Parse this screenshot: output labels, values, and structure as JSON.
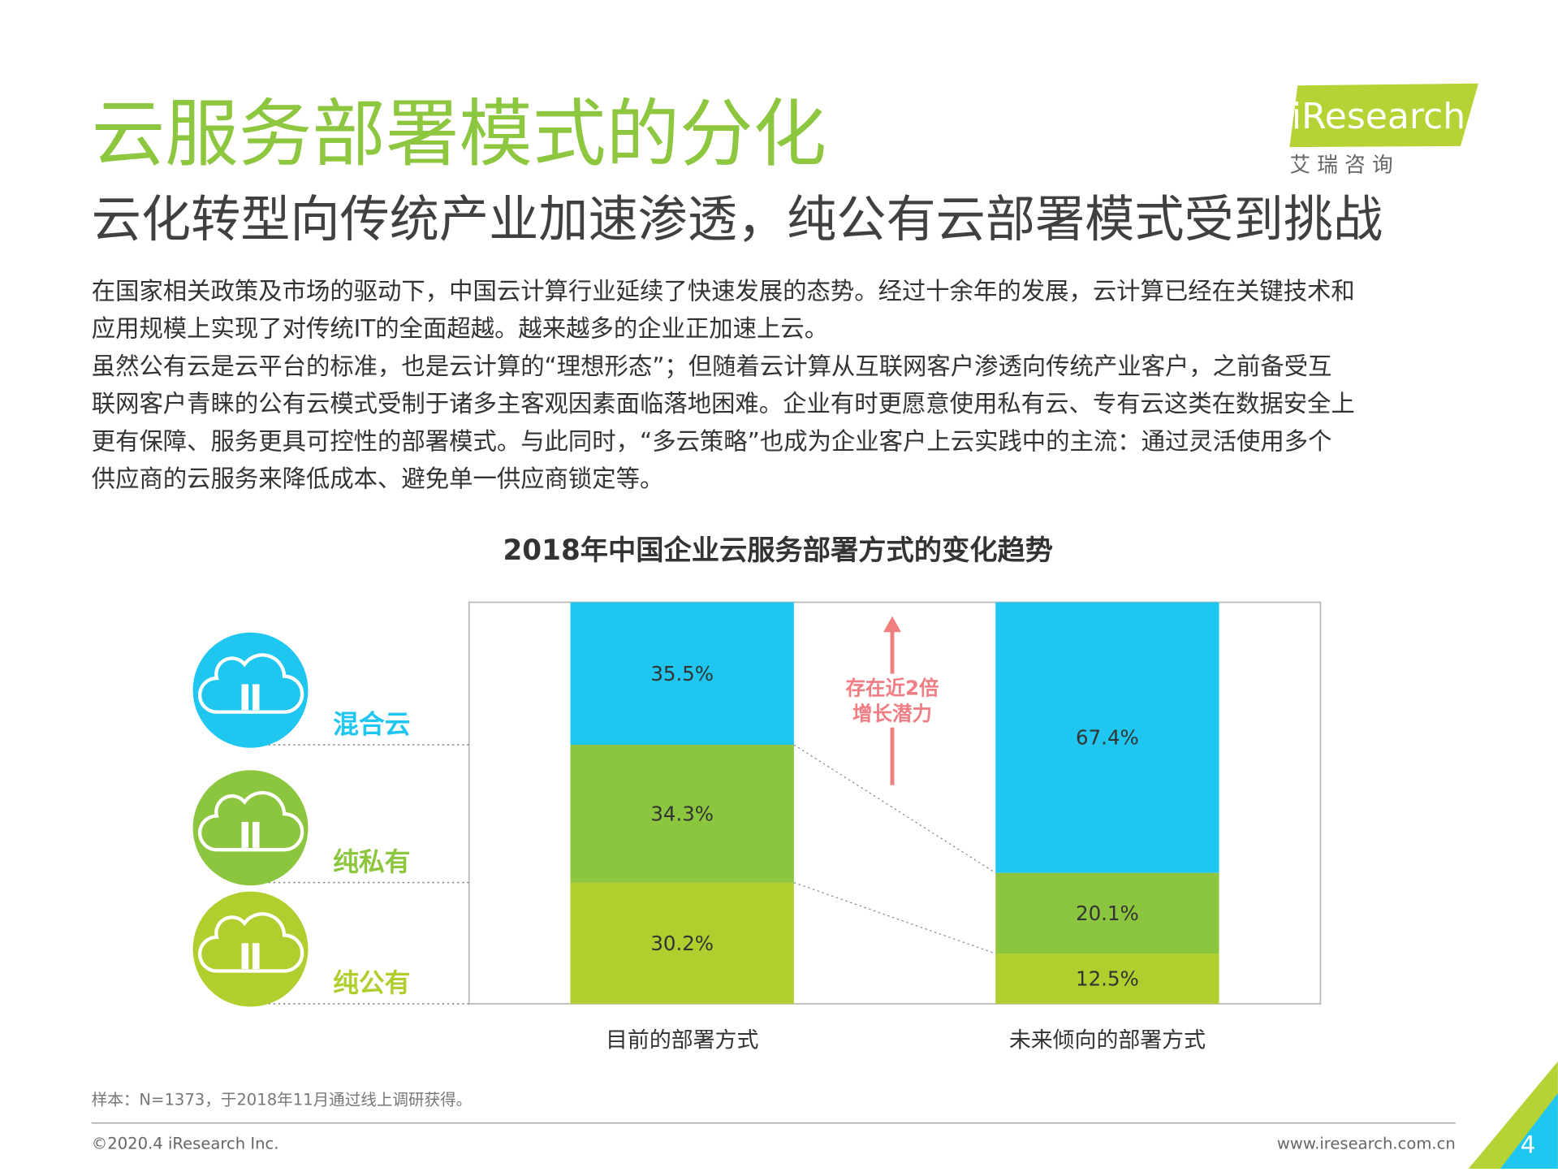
{
  "header": {
    "title": "云服务部署模式的分化",
    "subtitle": "云化转型向传统产业加速渗透，纯公有云部署模式受到挑战"
  },
  "logo": {
    "name": "iResearch",
    "subtitle": "艾 瑞 咨 询"
  },
  "body": [
    "在国家相关政策及市场的驱动下，中国云计算行业延续了快速发展的态势。经过十余年的发展，云计算已经在关键技术和",
    "应用规模上实现了对传统IT的全面超越。越来越多的企业正加速上云。",
    "虽然公有云是云平台的标准，也是云计算的“理想形态”；但随着云计算从互联网客户渗透向传统产业客户，之前备受互",
    "联网客户青睐的公有云模式受制于诸多主客观因素面临落地困难。企业有时更愿意使用私有云、专有云这类在数据安全上",
    "更有保障、服务更具可控性的部署模式。与此同时，“多云策略”也成为企业客户上云实践中的主流：通过灵活使用多个",
    "供应商的云服务来降低成本、避免单一供应商锁定等。"
  ],
  "chart_data": {
    "type": "stacked_bar",
    "title": "2018年中国企业云服务部署方式的变化趋势",
    "categories": [
      "目前的部署方式",
      "未来倾向的部署方式"
    ],
    "series": [
      {
        "name": "纯公有",
        "color": "#b0cf2e",
        "values": [
          30.2,
          12.5
        ],
        "value_labels": [
          "30.2%",
          "12.5%"
        ]
      },
      {
        "name": "纯私有",
        "color": "#8cc63e",
        "values": [
          34.3,
          20.1
        ],
        "value_labels": [
          "34.3%",
          "20.1%"
        ]
      },
      {
        "name": "混合云",
        "color": "#1ec6f0",
        "values": [
          35.5,
          67.4
        ],
        "value_labels": [
          "35.5%",
          "67.4%"
        ]
      }
    ],
    "ylim": [
      0,
      100
    ],
    "annotation": [
      "存在近2倍",
      "增长潜力"
    ]
  },
  "footer": {
    "note": "样本：N=1373，于2018年11月通过线上调研获得。",
    "copyright": "©2020.4 iResearch Inc.",
    "website": "www.iresearch.com.cn",
    "page": "4"
  }
}
